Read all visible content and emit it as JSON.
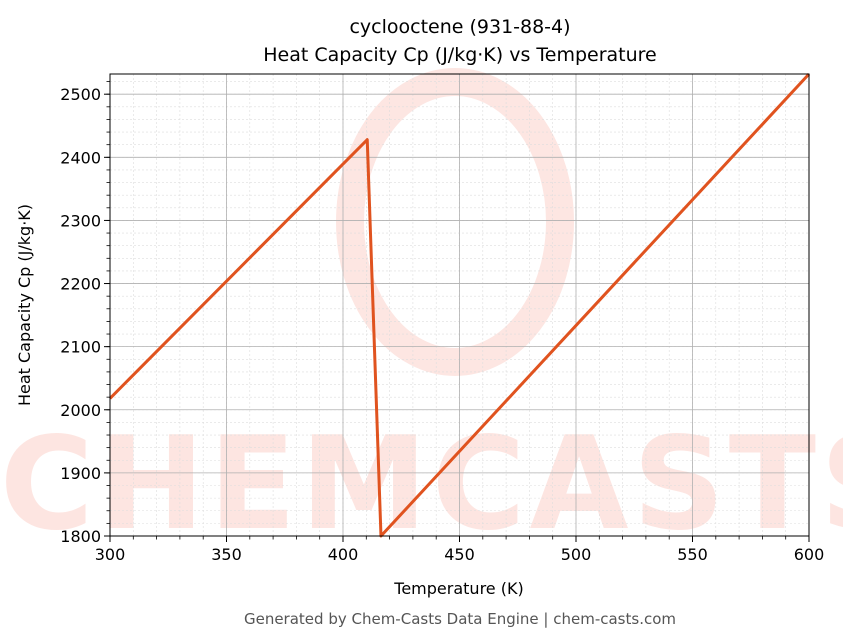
{
  "chart_data": {
    "type": "line",
    "title": "cyclooctene (931-88-4)",
    "subtitle": "Heat Capacity Cp (J/kg·K) vs Temperature",
    "xlabel": "Temperature (K)",
    "ylabel": "Heat Capacity Cp (J/kg·K)",
    "xlim": [
      300,
      600
    ],
    "ylim": [
      1800,
      2532
    ],
    "xticks": [
      300,
      350,
      400,
      450,
      500,
      550,
      600
    ],
    "yticks": [
      1800,
      1900,
      2000,
      2100,
      2200,
      2300,
      2400,
      2500
    ],
    "grid": true,
    "series": [
      {
        "color": "#e0531f",
        "x": [
          300,
          410.4,
          416.3,
          600
        ],
        "y": [
          2018,
          2428,
          1800,
          2532
        ]
      }
    ]
  },
  "watermark": "CHEMCASTS",
  "footer": "Generated by Chem-Casts Data Engine | chem-casts.com"
}
